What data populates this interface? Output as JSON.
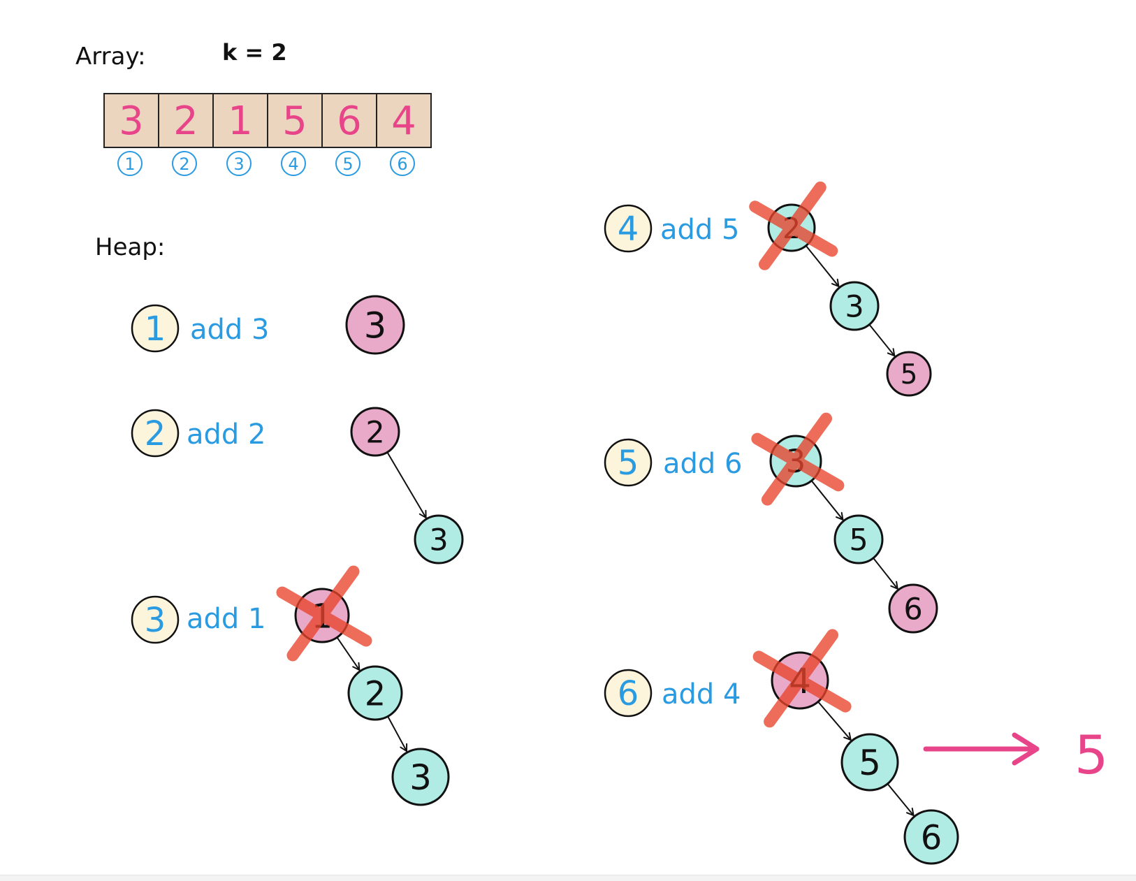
{
  "array_section": {
    "title": "Array:",
    "k_label": "k = 2",
    "values": [
      "3",
      "2",
      "1",
      "5",
      "6",
      "4"
    ],
    "indices": [
      "1",
      "2",
      "3",
      "4",
      "5",
      "6"
    ]
  },
  "heap_section": {
    "title": "Heap:",
    "steps": [
      {
        "step": "1",
        "action": "add 3",
        "nodes": [
          {
            "value": "3",
            "color": "pink",
            "removed": false
          }
        ]
      },
      {
        "step": "2",
        "action": "add 2",
        "nodes": [
          {
            "value": "2",
            "color": "pink",
            "removed": false
          },
          {
            "value": "3",
            "color": "teal",
            "removed": false
          }
        ]
      },
      {
        "step": "3",
        "action": "add 1",
        "nodes": [
          {
            "value": "1",
            "color": "pink",
            "removed": true
          },
          {
            "value": "2",
            "color": "teal",
            "removed": false
          },
          {
            "value": "3",
            "color": "teal",
            "removed": false
          }
        ]
      },
      {
        "step": "4",
        "action": "add 5",
        "nodes": [
          {
            "value": "2",
            "color": "teal",
            "removed": true
          },
          {
            "value": "3",
            "color": "teal",
            "removed": false
          },
          {
            "value": "5",
            "color": "pink",
            "removed": false
          }
        ]
      },
      {
        "step": "5",
        "action": "add 6",
        "nodes": [
          {
            "value": "3",
            "color": "teal",
            "removed": true
          },
          {
            "value": "5",
            "color": "teal",
            "removed": false
          },
          {
            "value": "6",
            "color": "pink",
            "removed": false
          }
        ]
      },
      {
        "step": "6",
        "action": "add 4",
        "nodes": [
          {
            "value": "4",
            "color": "pink",
            "removed": true
          },
          {
            "value": "5",
            "color": "teal",
            "removed": false
          },
          {
            "value": "6",
            "color": "teal",
            "removed": false
          }
        ]
      }
    ]
  },
  "result": {
    "value": "5"
  },
  "colors": {
    "array_cell_fill": "#ecd5bf",
    "array_digit": "#e8448a",
    "index_blue": "#2a9be0",
    "step_circle_fill": "#fdf4dc",
    "action_text": "#2a9be0",
    "node_pink": "#e9a9c9",
    "node_teal": "#b1ece4",
    "cross_red": "#e8442c",
    "result_arrow": "#e8448a"
  }
}
